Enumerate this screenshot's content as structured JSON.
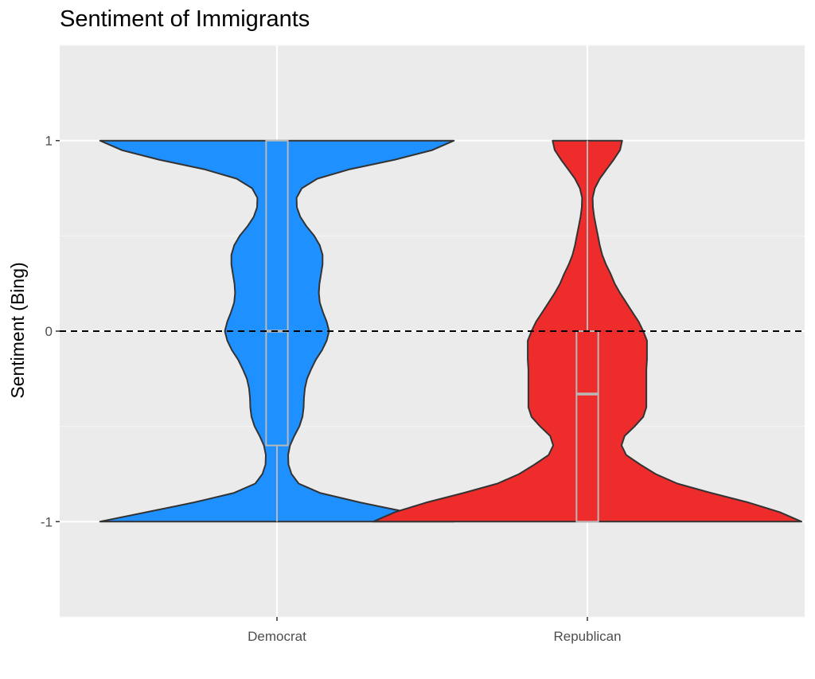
{
  "chart_data": {
    "type": "violin",
    "title": "Sentiment of Immigrants",
    "xlabel": "",
    "ylabel": "Sentiment (Bing)",
    "ylim": [
      -1.5,
      1.5
    ],
    "yticks": [
      -1,
      0,
      1
    ],
    "y_tick_labels": [
      "-1",
      "0",
      "1"
    ],
    "grid": true,
    "reference_line": {
      "y": 0,
      "style": "dashed",
      "color": "#000000"
    },
    "categories": [
      "Democrat",
      "Republican"
    ],
    "series": [
      {
        "category": "Democrat",
        "fill": "#1e90ff",
        "density_profile": [
          {
            "y": -1.0,
            "w": 0.57
          },
          {
            "y": -0.95,
            "w": 0.42
          },
          {
            "y": -0.9,
            "w": 0.27
          },
          {
            "y": -0.85,
            "w": 0.14
          },
          {
            "y": -0.8,
            "w": 0.07
          },
          {
            "y": -0.75,
            "w": 0.047
          },
          {
            "y": -0.7,
            "w": 0.037
          },
          {
            "y": -0.65,
            "w": 0.036
          },
          {
            "y": -0.6,
            "w": 0.042
          },
          {
            "y": -0.55,
            "w": 0.056
          },
          {
            "y": -0.5,
            "w": 0.072
          },
          {
            "y": -0.45,
            "w": 0.082
          },
          {
            "y": -0.4,
            "w": 0.086
          },
          {
            "y": -0.35,
            "w": 0.087
          },
          {
            "y": -0.3,
            "w": 0.09
          },
          {
            "y": -0.25,
            "w": 0.097
          },
          {
            "y": -0.2,
            "w": 0.11
          },
          {
            "y": -0.15,
            "w": 0.125
          },
          {
            "y": -0.1,
            "w": 0.145
          },
          {
            "y": -0.05,
            "w": 0.16
          },
          {
            "y": 0.0,
            "w": 0.168
          },
          {
            "y": 0.05,
            "w": 0.16
          },
          {
            "y": 0.1,
            "w": 0.148
          },
          {
            "y": 0.15,
            "w": 0.138
          },
          {
            "y": 0.2,
            "w": 0.135
          },
          {
            "y": 0.25,
            "w": 0.137
          },
          {
            "y": 0.3,
            "w": 0.142
          },
          {
            "y": 0.35,
            "w": 0.147
          },
          {
            "y": 0.4,
            "w": 0.147
          },
          {
            "y": 0.45,
            "w": 0.138
          },
          {
            "y": 0.5,
            "w": 0.12
          },
          {
            "y": 0.55,
            "w": 0.095
          },
          {
            "y": 0.6,
            "w": 0.075
          },
          {
            "y": 0.65,
            "w": 0.064
          },
          {
            "y": 0.7,
            "w": 0.063
          },
          {
            "y": 0.75,
            "w": 0.08
          },
          {
            "y": 0.8,
            "w": 0.13
          },
          {
            "y": 0.85,
            "w": 0.235
          },
          {
            "y": 0.9,
            "w": 0.38
          },
          {
            "y": 0.95,
            "w": 0.5
          },
          {
            "y": 1.0,
            "w": 0.57
          }
        ],
        "box": {
          "min": -1,
          "q1": -0.6,
          "median": 0,
          "q3": 1,
          "max": 1
        }
      },
      {
        "category": "Republican",
        "fill": "#ee2c2c",
        "density_profile": [
          {
            "y": -1.0,
            "w": 0.69
          },
          {
            "y": -0.95,
            "w": 0.62
          },
          {
            "y": -0.9,
            "w": 0.52
          },
          {
            "y": -0.85,
            "w": 0.4
          },
          {
            "y": -0.8,
            "w": 0.29
          },
          {
            "y": -0.75,
            "w": 0.22
          },
          {
            "y": -0.7,
            "w": 0.17
          },
          {
            "y": -0.65,
            "w": 0.125
          },
          {
            "y": -0.6,
            "w": 0.11
          },
          {
            "y": -0.55,
            "w": 0.12
          },
          {
            "y": -0.5,
            "w": 0.152
          },
          {
            "y": -0.45,
            "w": 0.18
          },
          {
            "y": -0.4,
            "w": 0.19
          },
          {
            "y": -0.35,
            "w": 0.19
          },
          {
            "y": -0.3,
            "w": 0.19
          },
          {
            "y": -0.25,
            "w": 0.19
          },
          {
            "y": -0.2,
            "w": 0.19
          },
          {
            "y": -0.15,
            "w": 0.192
          },
          {
            "y": -0.1,
            "w": 0.192
          },
          {
            "y": -0.05,
            "w": 0.192
          },
          {
            "y": 0.0,
            "w": 0.18
          },
          {
            "y": 0.05,
            "w": 0.165
          },
          {
            "y": 0.1,
            "w": 0.145
          },
          {
            "y": 0.15,
            "w": 0.125
          },
          {
            "y": 0.2,
            "w": 0.105
          },
          {
            "y": 0.25,
            "w": 0.088
          },
          {
            "y": 0.3,
            "w": 0.075
          },
          {
            "y": 0.35,
            "w": 0.06
          },
          {
            "y": 0.4,
            "w": 0.048
          },
          {
            "y": 0.45,
            "w": 0.04
          },
          {
            "y": 0.5,
            "w": 0.034
          },
          {
            "y": 0.55,
            "w": 0.028
          },
          {
            "y": 0.6,
            "w": 0.022
          },
          {
            "y": 0.65,
            "w": 0.018
          },
          {
            "y": 0.7,
            "w": 0.017
          },
          {
            "y": 0.75,
            "w": 0.024
          },
          {
            "y": 0.8,
            "w": 0.04
          },
          {
            "y": 0.85,
            "w": 0.062
          },
          {
            "y": 0.9,
            "w": 0.085
          },
          {
            "y": 0.95,
            "w": 0.105
          },
          {
            "y": 1.0,
            "w": 0.112
          }
        ],
        "box": {
          "min": -1,
          "q1": -1,
          "median": -0.33,
          "q3": 0,
          "max": 1
        }
      }
    ],
    "colors": {
      "panel_background": "#ebebeb",
      "grid_major": "#ffffff",
      "grid_minor": "#f5f5f5",
      "violin_outline": "#333333",
      "box_outline": "#b8b8b8",
      "median": "#b8b8b8"
    }
  }
}
